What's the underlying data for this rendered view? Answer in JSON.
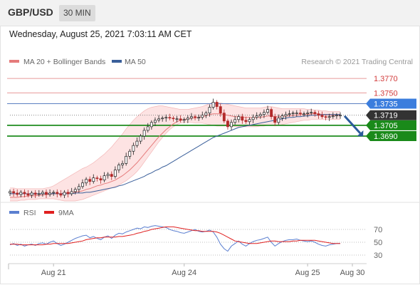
{
  "header": {
    "pair": "GBP/USD",
    "timeframe": "30 MIN"
  },
  "datetime": "Wednesday, August 25, 2021 7:03:11 AM CET",
  "legend": {
    "ma20": "MA 20 + Bollinger Bands",
    "ma50": "MA 50",
    "credit": "Research © 2021 Trading Central"
  },
  "colors": {
    "ma20": "#e57b7b",
    "ma50": "#3a5f9a",
    "band_fill": "#fde3e3",
    "support": "#1e8c1e",
    "resistance": "#e89a9a",
    "pivot": "#5b7fc1",
    "current": "#333333",
    "arrow": "#2b5b9b",
    "candle_up": "#1f1f1f",
    "candle_down": "#b22a2a",
    "rsi": "#5b7fd0",
    "rsi_ma": "#e02020"
  },
  "chart_data": [
    {
      "type": "line",
      "subtype": "candlestick",
      "instrument": "GBP/USD",
      "interval": "30 MIN",
      "x_tick_labels": [
        "Aug 21",
        "Aug 24",
        "Aug 25",
        "Aug 30"
      ],
      "x_tick_index": [
        12,
        48,
        82,
        95
      ],
      "ylim": [
        1.3602,
        1.3782
      ],
      "levels": [
        {
          "label": "1.3770",
          "value": 1.377,
          "kind": "resistance"
        },
        {
          "label": "1.3750",
          "value": 1.375,
          "kind": "resistance"
        },
        {
          "label": "1.3735",
          "value": 1.3735,
          "kind": "pivot"
        },
        {
          "label": "1.3719",
          "value": 1.3719,
          "kind": "current"
        },
        {
          "label": "1.3705",
          "value": 1.3705,
          "kind": "support"
        },
        {
          "label": "1.3690",
          "value": 1.369,
          "kind": "support"
        }
      ],
      "close": [
        1.3613,
        1.3611,
        1.3609,
        1.3612,
        1.361,
        1.3608,
        1.3611,
        1.3609,
        1.361,
        1.3612,
        1.3609,
        1.3611,
        1.3612,
        1.361,
        1.3608,
        1.3612,
        1.361,
        1.3613,
        1.3616,
        1.362,
        1.3625,
        1.363,
        1.3627,
        1.3632,
        1.3631,
        1.3629,
        1.3635,
        1.3637,
        1.3634,
        1.3643,
        1.365,
        1.3652,
        1.3662,
        1.3669,
        1.3677,
        1.3683,
        1.369,
        1.3698,
        1.3703,
        1.3709,
        1.3712,
        1.3714,
        1.3715,
        1.3716,
        1.3715,
        1.3714,
        1.3714,
        1.3712,
        1.3713,
        1.3715,
        1.3717,
        1.3716,
        1.3716,
        1.3719,
        1.3722,
        1.373,
        1.3737,
        1.3731,
        1.3722,
        1.3711,
        1.3703,
        1.3709,
        1.3713,
        1.3717,
        1.3712,
        1.371,
        1.3713,
        1.3716,
        1.3718,
        1.372,
        1.3723,
        1.3727,
        1.3717,
        1.3709,
        1.3715,
        1.3718,
        1.372,
        1.3721,
        1.3722,
        1.3722,
        1.3721,
        1.3721,
        1.3722,
        1.3723,
        1.3721,
        1.3719,
        1.3717,
        1.3716,
        1.3717,
        1.3718,
        1.3719,
        1.3719
      ],
      "ma20": [
        1.3605,
        1.3605,
        1.3605,
        1.3606,
        1.3606,
        1.3607,
        1.3607,
        1.3607,
        1.3608,
        1.3608,
        1.3609,
        1.3609,
        1.361,
        1.361,
        1.361,
        1.3611,
        1.3611,
        1.3612,
        1.3612,
        1.3613,
        1.3614,
        1.3616,
        1.3617,
        1.3619,
        1.3621,
        1.3622,
        1.3624,
        1.3625,
        1.3627,
        1.3629,
        1.3632,
        1.3635,
        1.3639,
        1.3643,
        1.3648,
        1.3653,
        1.3659,
        1.3665,
        1.3671,
        1.3677,
        1.3683,
        1.3689,
        1.3694,
        1.3699,
        1.3703,
        1.3707,
        1.371,
        1.3712,
        1.3713,
        1.3714,
        1.3715,
        1.3715,
        1.3716,
        1.3717,
        1.3718,
        1.372,
        1.3721,
        1.3721,
        1.3721,
        1.372,
        1.3719,
        1.3718,
        1.3717,
        1.3717,
        1.3716,
        1.3716,
        1.3716,
        1.3715,
        1.3716,
        1.3716,
        1.3717,
        1.3718,
        1.3718,
        1.3717,
        1.3717,
        1.3717,
        1.3718,
        1.3718,
        1.3719,
        1.3719,
        1.372,
        1.372,
        1.372,
        1.3721,
        1.3721,
        1.3721,
        1.372,
        1.372,
        1.3719,
        1.3719,
        1.3719,
        1.3719
      ],
      "band_upper": [
        1.3618,
        1.3618,
        1.3617,
        1.3617,
        1.3617,
        1.3617,
        1.3617,
        1.3617,
        1.3617,
        1.3617,
        1.3618,
        1.3619,
        1.3621,
        1.3624,
        1.3627,
        1.363,
        1.3633,
        1.3636,
        1.3639,
        1.3642,
        1.3645,
        1.3647,
        1.365,
        1.3653,
        1.3657,
        1.3661,
        1.3665,
        1.367,
        1.3675,
        1.3681,
        1.3687,
        1.3693,
        1.37,
        1.3706,
        1.3712,
        1.3717,
        1.3721,
        1.3725,
        1.3728,
        1.373,
        1.3731,
        1.3732,
        1.3732,
        1.3731,
        1.373,
        1.3729,
        1.3728,
        1.3727,
        1.3727,
        1.3727,
        1.3728,
        1.3729,
        1.373,
        1.3731,
        1.3733,
        1.3735,
        1.3737,
        1.3737,
        1.3736,
        1.3735,
        1.3734,
        1.3733,
        1.3732,
        1.3731,
        1.373,
        1.3729,
        1.3729,
        1.3729,
        1.3729,
        1.3729,
        1.373,
        1.3731,
        1.3731,
        1.373,
        1.3729,
        1.3728,
        1.3728,
        1.3728,
        1.3728,
        1.3728,
        1.3728,
        1.3728,
        1.3727,
        1.3727,
        1.3726,
        1.3726,
        1.3725,
        1.3725,
        1.3724,
        1.3724,
        1.3724,
        1.3724
      ],
      "band_lower": [
        1.36,
        1.36,
        1.36,
        1.3601,
        1.3601,
        1.3602,
        1.3602,
        1.3602,
        1.3603,
        1.3603,
        1.3603,
        1.3603,
        1.3603,
        1.3602,
        1.3601,
        1.36,
        1.36,
        1.36,
        1.36,
        1.3601,
        1.3602,
        1.3604,
        1.3606,
        1.3608,
        1.361,
        1.3612,
        1.3614,
        1.3616,
        1.3618,
        1.362,
        1.3622,
        1.3625,
        1.3628,
        1.3632,
        1.3636,
        1.3641,
        1.3647,
        1.3654,
        1.3661,
        1.3668,
        1.3675,
        1.3682,
        1.3688,
        1.3694,
        1.3699,
        1.3703,
        1.3706,
        1.3708,
        1.3709,
        1.3709,
        1.3709,
        1.3708,
        1.3708,
        1.3708,
        1.3707,
        1.3706,
        1.3705,
        1.3704,
        1.3704,
        1.3704,
        1.3704,
        1.3704,
        1.3703,
        1.3703,
        1.3703,
        1.3703,
        1.3703,
        1.3703,
        1.3703,
        1.3704,
        1.3704,
        1.3705,
        1.3705,
        1.3705,
        1.3705,
        1.3706,
        1.3707,
        1.3708,
        1.3709,
        1.371,
        1.3711,
        1.3712,
        1.3712,
        1.3713,
        1.3713,
        1.3713,
        1.3713,
        1.3713,
        1.3713,
        1.3713,
        1.3713,
        1.3713
      ],
      "ma50": [
        1.361,
        1.361,
        1.361,
        1.361,
        1.361,
        1.361,
        1.361,
        1.361,
        1.361,
        1.361,
        1.361,
        1.361,
        1.361,
        1.361,
        1.361,
        1.361,
        1.361,
        1.361,
        1.3611,
        1.3611,
        1.3611,
        1.3612,
        1.3612,
        1.3613,
        1.3614,
        1.3615,
        1.3616,
        1.3617,
        1.3618,
        1.3619,
        1.3621,
        1.3622,
        1.3624,
        1.3626,
        1.3628,
        1.363,
        1.3632,
        1.3634,
        1.3637,
        1.3639,
        1.3642,
        1.3644,
        1.3647,
        1.3649,
        1.3652,
        1.3655,
        1.3658,
        1.3661,
        1.3664,
        1.3667,
        1.367,
        1.3673,
        1.3676,
        1.3679,
        1.3682,
        1.3685,
        1.3688,
        1.369,
        1.3692,
        1.3694,
        1.3696,
        1.3698,
        1.37,
        1.3702,
        1.3703,
        1.3704,
        1.3705,
        1.3706,
        1.3707,
        1.3708,
        1.3709,
        1.371,
        1.3711,
        1.3712,
        1.3713,
        1.3714,
        1.3715,
        1.3716,
        1.3716,
        1.3717,
        1.3717,
        1.3718,
        1.3718,
        1.3719,
        1.3719,
        1.3719,
        1.372,
        1.372,
        1.372,
        1.372,
        1.372,
        1.372
      ]
    },
    {
      "type": "line",
      "legend": [
        "RSI",
        "9MA"
      ],
      "ylim": [
        20,
        80
      ],
      "y_ticks": [
        70,
        50,
        30
      ],
      "y_tick_labels": [
        "70",
        "50",
        "30"
      ],
      "series": [
        {
          "name": "RSI",
          "values": [
            46,
            48,
            45,
            47,
            44,
            46,
            47,
            45,
            48,
            49,
            47,
            50,
            52,
            48,
            45,
            47,
            50,
            53,
            56,
            58,
            60,
            61,
            57,
            59,
            56,
            54,
            58,
            60,
            56,
            61,
            64,
            63,
            66,
            68,
            70,
            72,
            71,
            74,
            73,
            75,
            76,
            75,
            74,
            73,
            70,
            68,
            67,
            65,
            64,
            66,
            68,
            70,
            67,
            66,
            67,
            69,
            66,
            58,
            47,
            40,
            36,
            44,
            48,
            52,
            47,
            44,
            48,
            51,
            53,
            54,
            56,
            58,
            50,
            44,
            48,
            51,
            53,
            54,
            54,
            55,
            53,
            52,
            51,
            52,
            50,
            47,
            45,
            44,
            46,
            47,
            48,
            48
          ]
        },
        {
          "name": "9MA",
          "values": [
            47,
            47,
            47,
            46,
            46,
            46,
            46,
            46,
            46,
            46,
            47,
            47,
            48,
            48,
            48,
            48,
            48,
            49,
            50,
            51,
            52,
            54,
            55,
            56,
            57,
            57,
            58,
            58,
            58,
            58,
            59,
            59,
            60,
            61,
            62,
            64,
            65,
            67,
            68,
            70,
            71,
            72,
            73,
            74,
            74,
            74,
            73,
            72,
            71,
            70,
            69,
            68,
            68,
            67,
            67,
            67,
            67,
            66,
            64,
            61,
            58,
            55,
            52,
            51,
            50,
            49,
            48,
            48,
            48,
            49,
            50,
            51,
            52,
            52,
            51,
            51,
            51,
            51,
            52,
            52,
            53,
            53,
            53,
            53,
            53,
            52,
            51,
            50,
            49,
            48,
            48,
            48
          ]
        }
      ]
    }
  ]
}
